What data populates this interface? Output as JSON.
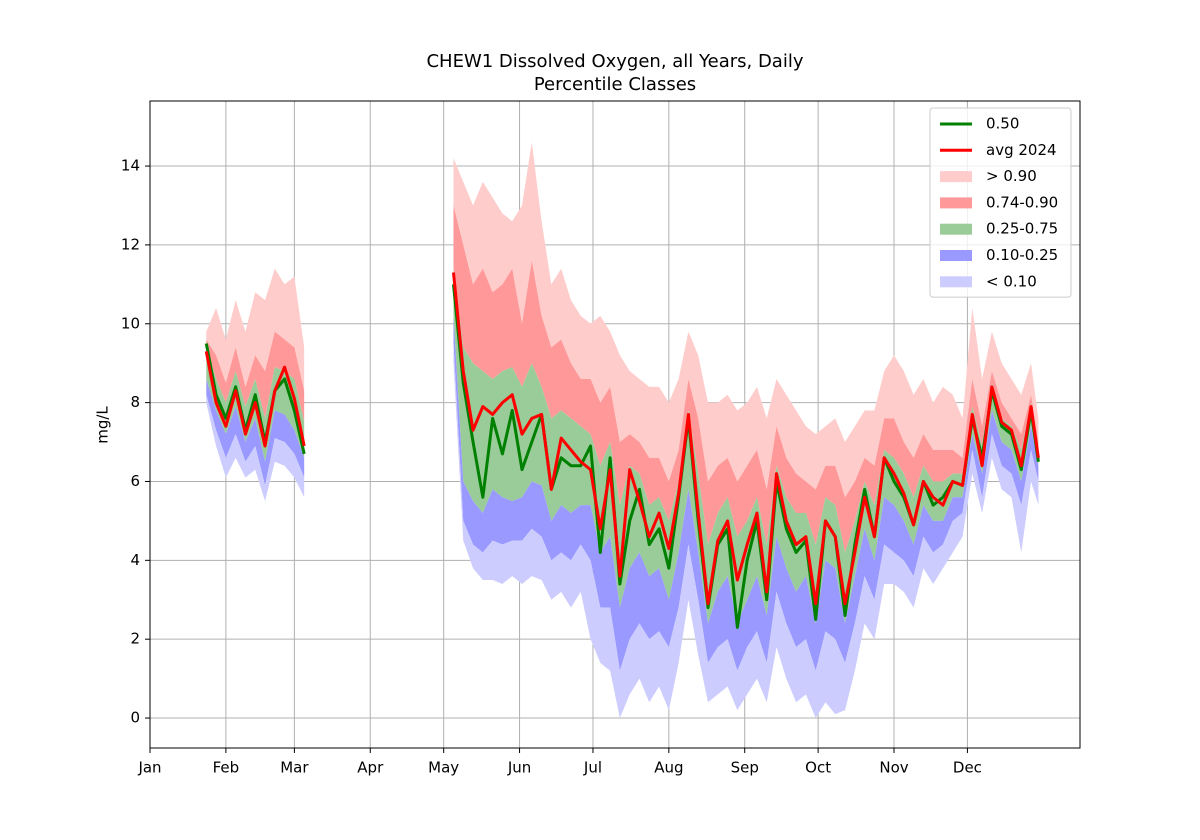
{
  "chart_data": {
    "type": "percentile-bands",
    "title": "CHEW1 Dissolved Oxygen, all Years, Daily",
    "subtitle": "Percentile Classes",
    "ylabel": "mg/L",
    "xlim": [
      1,
      381
    ],
    "ylim": [
      -0.76,
      15.65
    ],
    "xticks": [
      {
        "value": 1,
        "label": "Jan"
      },
      {
        "value": 32,
        "label": "Feb"
      },
      {
        "value": 60,
        "label": "Mar"
      },
      {
        "value": 91,
        "label": "Apr"
      },
      {
        "value": 121,
        "label": "May"
      },
      {
        "value": 152,
        "label": "Jun"
      },
      {
        "value": 182,
        "label": "Jul"
      },
      {
        "value": 213,
        "label": "Aug"
      },
      {
        "value": 244,
        "label": "Sep"
      },
      {
        "value": 274,
        "label": "Oct"
      },
      {
        "value": 305,
        "label": "Nov"
      },
      {
        "value": 335,
        "label": "Dec"
      }
    ],
    "yticks": [
      0,
      2,
      4,
      6,
      8,
      10,
      12,
      14
    ],
    "grid": true,
    "legend": "upper right",
    "x": [
      24,
      28,
      32,
      36,
      40,
      44,
      48,
      52,
      56,
      60,
      64,
      95,
      125,
      129,
      133,
      137,
      141,
      145,
      149,
      153,
      157,
      161,
      165,
      169,
      173,
      177,
      181,
      185,
      189,
      193,
      197,
      201,
      205,
      209,
      213,
      217,
      221,
      225,
      229,
      233,
      237,
      241,
      245,
      249,
      253,
      257,
      261,
      265,
      269,
      273,
      277,
      281,
      285,
      289,
      293,
      297,
      301,
      305,
      309,
      313,
      317,
      321,
      325,
      329,
      333,
      337,
      341,
      345,
      349,
      353,
      357,
      361,
      364
    ],
    "series": [
      {
        "name": "0.50",
        "color": "#008000",
        "values": [
          9.5,
          8.2,
          7.6,
          8.4,
          7.3,
          8.2,
          7.0,
          8.3,
          8.6,
          7.8,
          6.7,
          null,
          11.0,
          8.5,
          7.0,
          5.6,
          7.6,
          6.7,
          7.8,
          6.3,
          7.0,
          7.7,
          5.8,
          6.6,
          6.4,
          6.4,
          6.9,
          4.2,
          6.6,
          3.4,
          5.0,
          5.8,
          4.4,
          4.8,
          3.8,
          5.6,
          7.6,
          5.0,
          2.8,
          4.4,
          4.8,
          2.3,
          4.0,
          5.0,
          3.0,
          6.0,
          4.8,
          4.2,
          4.5,
          2.5,
          5.0,
          4.6,
          2.6,
          4.4,
          5.8,
          4.6,
          6.6,
          6.0,
          5.6,
          4.9,
          6.0,
          5.4,
          5.6,
          6.0,
          5.9,
          7.6,
          6.6,
          8.3,
          7.4,
          7.2,
          6.3,
          7.8,
          6.5
        ]
      },
      {
        "name": "avg 2024",
        "color": "#ff0000",
        "values": [
          9.3,
          8.0,
          7.4,
          8.3,
          7.2,
          8.0,
          6.9,
          8.3,
          8.9,
          8.1,
          6.9,
          null,
          11.3,
          8.8,
          7.3,
          7.9,
          7.7,
          8.0,
          8.2,
          7.2,
          7.6,
          7.7,
          5.8,
          7.1,
          6.8,
          6.5,
          6.3,
          4.8,
          6.3,
          3.6,
          6.3,
          5.5,
          4.6,
          5.2,
          4.3,
          5.7,
          7.7,
          5.2,
          2.9,
          4.5,
          5.0,
          3.5,
          4.4,
          5.2,
          3.2,
          6.2,
          5.0,
          4.4,
          4.6,
          2.9,
          5.0,
          4.6,
          2.9,
          4.2,
          5.6,
          4.6,
          6.6,
          6.2,
          5.7,
          4.9,
          6.0,
          5.6,
          5.4,
          6.0,
          5.9,
          7.7,
          6.4,
          8.4,
          7.5,
          7.3,
          6.4,
          7.9,
          6.6
        ]
      }
    ],
    "bands": [
      {
        "name": "> 0.90",
        "color": "#ffcccc",
        "values": [
          9.8,
          10.4,
          9.6,
          10.6,
          9.8,
          10.8,
          10.6,
          11.4,
          11.0,
          11.2,
          9.4,
          null,
          14.2,
          13.6,
          13.0,
          13.6,
          13.2,
          12.8,
          12.6,
          13.0,
          14.6,
          12.6,
          11.0,
          11.4,
          10.6,
          10.2,
          10.0,
          10.2,
          9.8,
          9.2,
          8.8,
          8.6,
          8.4,
          8.4,
          8.0,
          8.6,
          9.8,
          9.2,
          8.0,
          8.0,
          8.2,
          7.8,
          8.0,
          8.4,
          7.6,
          8.6,
          8.2,
          7.8,
          7.4,
          7.2,
          7.4,
          7.6,
          7.0,
          7.4,
          7.8,
          7.8,
          8.8,
          9.2,
          8.8,
          8.2,
          8.6,
          8.0,
          8.4,
          8.2,
          7.6,
          10.4,
          8.6,
          9.8,
          9.0,
          8.6,
          8.2,
          9.0,
          7.6
        ]
      },
      {
        "name": "0.74-0.90",
        "color": "#ff9999",
        "values": [
          9.6,
          9.2,
          8.5,
          9.4,
          8.4,
          9.2,
          8.8,
          9.8,
          9.6,
          9.4,
          8.3,
          null,
          13.0,
          12.0,
          11.0,
          11.4,
          10.8,
          11.0,
          11.4,
          10.0,
          11.6,
          10.2,
          9.4,
          9.6,
          9.0,
          8.6,
          8.6,
          8.0,
          8.4,
          7.0,
          7.2,
          7.0,
          6.6,
          6.6,
          6.0,
          6.8,
          8.6,
          7.6,
          6.0,
          6.4,
          6.6,
          6.0,
          6.4,
          6.8,
          5.8,
          7.4,
          6.6,
          6.2,
          6.0,
          5.8,
          6.4,
          6.4,
          5.6,
          6.0,
          6.6,
          6.4,
          7.6,
          7.6,
          7.0,
          6.6,
          7.2,
          6.8,
          6.8,
          6.8,
          6.6,
          8.6,
          7.4,
          8.8,
          8.0,
          7.6,
          7.2,
          8.2,
          7.0
        ]
      },
      {
        "name": "0.25-0.75",
        "color": "#99cc99",
        "values": [
          9.4,
          8.6,
          8.0,
          8.8,
          7.9,
          8.6,
          7.6,
          8.9,
          8.8,
          8.6,
          7.5,
          null,
          11.4,
          9.4,
          9.0,
          8.8,
          8.6,
          8.8,
          8.9,
          8.4,
          9.0,
          8.4,
          7.6,
          7.8,
          7.6,
          7.4,
          7.2,
          6.4,
          7.0,
          5.4,
          6.4,
          6.2,
          5.4,
          5.6,
          5.0,
          6.0,
          7.8,
          6.2,
          4.4,
          5.2,
          5.6,
          4.6,
          5.0,
          5.6,
          4.4,
          6.4,
          5.6,
          5.2,
          5.2,
          4.4,
          5.6,
          5.4,
          4.2,
          5.0,
          6.0,
          5.4,
          6.8,
          6.6,
          6.2,
          5.6,
          6.4,
          6.0,
          6.0,
          6.2,
          6.2,
          7.9,
          6.9,
          8.5,
          7.6,
          7.4,
          6.8,
          8.0,
          6.8
        ]
      },
      {
        "name": "0.10-0.25",
        "color": "#9999ff",
        "values": [
          8.6,
          7.8,
          7.2,
          7.9,
          7.0,
          7.6,
          6.5,
          7.8,
          7.7,
          7.3,
          6.6,
          null,
          10.2,
          6.0,
          5.5,
          5.2,
          5.8,
          5.6,
          5.5,
          5.6,
          6.0,
          5.9,
          5.0,
          5.4,
          5.2,
          5.4,
          5.4,
          4.2,
          4.6,
          2.8,
          3.8,
          4.2,
          3.6,
          3.8,
          3.0,
          4.2,
          5.8,
          4.2,
          2.4,
          3.2,
          3.6,
          2.4,
          3.0,
          3.6,
          2.6,
          4.6,
          3.8,
          3.2,
          3.6,
          2.4,
          4.0,
          3.8,
          2.4,
          3.6,
          4.8,
          4.0,
          5.6,
          5.4,
          5.0,
          4.4,
          5.4,
          5.0,
          5.0,
          5.6,
          5.6,
          7.2,
          6.2,
          7.8,
          7.0,
          6.8,
          6.0,
          7.4,
          6.4
        ]
      },
      {
        "name": "< 0.10",
        "color": "#ccccff",
        "values": [
          8.2,
          7.3,
          6.6,
          7.2,
          6.5,
          6.9,
          5.9,
          7.1,
          7.0,
          6.7,
          6.1,
          null,
          9.5,
          5.0,
          4.4,
          4.2,
          4.5,
          4.4,
          4.5,
          4.5,
          4.8,
          4.6,
          4.0,
          4.2,
          4.0,
          4.4,
          4.0,
          2.8,
          2.8,
          1.2,
          2.0,
          2.4,
          2.0,
          2.2,
          1.8,
          2.8,
          4.4,
          3.0,
          1.4,
          1.8,
          2.0,
          1.2,
          1.8,
          2.2,
          1.4,
          3.2,
          2.4,
          1.8,
          2.0,
          1.2,
          2.2,
          2.0,
          1.4,
          2.4,
          3.6,
          3.0,
          4.4,
          4.2,
          4.0,
          3.6,
          4.6,
          4.2,
          4.4,
          5.0,
          5.2,
          6.8,
          5.6,
          7.2,
          6.4,
          6.2,
          5.4,
          6.8,
          6.0
        ],
        "lower": [
          8.0,
          6.9,
          6.1,
          6.6,
          6.1,
          6.3,
          5.5,
          6.5,
          6.4,
          6.1,
          5.6,
          null,
          9.0,
          4.5,
          3.8,
          3.5,
          3.5,
          3.4,
          3.6,
          3.4,
          3.6,
          3.5,
          3.0,
          3.2,
          2.8,
          3.2,
          2.0,
          1.4,
          1.2,
          0.0,
          0.6,
          1.0,
          0.4,
          0.8,
          0.2,
          1.4,
          3.0,
          1.6,
          0.4,
          0.6,
          0.8,
          0.2,
          0.6,
          1.0,
          0.4,
          1.8,
          1.0,
          0.4,
          0.6,
          0.0,
          0.4,
          0.1,
          0.2,
          1.2,
          2.4,
          2.0,
          3.4,
          3.4,
          3.2,
          2.8,
          3.8,
          3.4,
          3.8,
          4.2,
          4.6,
          6.2,
          5.2,
          6.6,
          5.8,
          5.6,
          4.2,
          6.0,
          5.4
        ]
      }
    ]
  }
}
